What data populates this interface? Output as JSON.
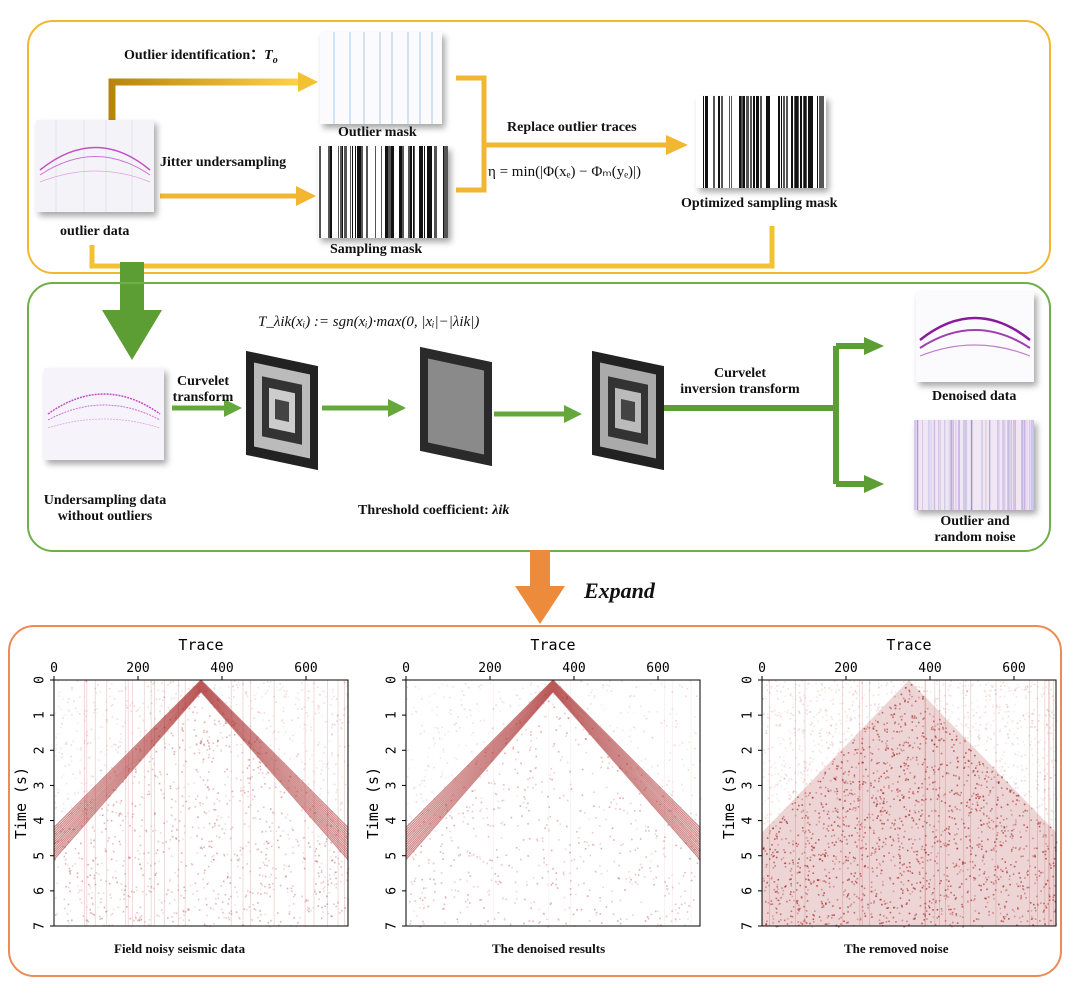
{
  "top_panel": {
    "outlier_identification": "Outlier identification：",
    "outlier_symbol": "T",
    "outlier_symbol_sub": "o",
    "outlier_mask": "Outlier mask",
    "jitter_undersampling": "Jitter undersampling",
    "sampling_mask": "Sampling mask",
    "outlier_data": "outlier data",
    "replace_outlier_traces": "Replace outlier traces",
    "eta_formula": "η = min(|Φ(xₑ) − Φₘ(yₑ)|)",
    "optimized_sampling_mask": "Optimized sampling mask"
  },
  "mid_panel": {
    "threshold_formula": "T_λik(xᵢ) := sgn(xᵢ)·max(0, |xᵢ|−|λik|)",
    "undersampling_label_1": "Undersampling data",
    "undersampling_label_2": "without outliers",
    "curvelet_transform_1": "Curvelet",
    "curvelet_transform_2": "transform",
    "threshold_coefficient": "Threshold coefficient:",
    "threshold_symbol": "λik",
    "curvelet_inversion_1": "Curvelet",
    "curvelet_inversion_2": "inversion transform",
    "denoised_data": "Denoised data",
    "outlier_noise_1": "Outlier and",
    "outlier_noise_2": "random noise"
  },
  "expand_label": "Expand",
  "plots": [
    {
      "title": "Field noisy seismic data",
      "xlabel": "Trace",
      "ylabel": "Time (s)",
      "xticks": [
        "0",
        "200",
        "400",
        "600"
      ],
      "yticks": [
        "0",
        "1",
        "2",
        "3",
        "4",
        "5",
        "6",
        "7"
      ]
    },
    {
      "title": "The denoised results",
      "xlabel": "Trace",
      "ylabel": "Time (s)",
      "xticks": [
        "0",
        "200",
        "400",
        "600"
      ],
      "yticks": [
        "0",
        "1",
        "2",
        "3",
        "4",
        "5",
        "6",
        "7"
      ]
    },
    {
      "title": "The removed noise",
      "xlabel": "Trace",
      "ylabel": "Time (s)",
      "xticks": [
        "0",
        "200",
        "400",
        "600"
      ],
      "yticks": [
        "0",
        "1",
        "2",
        "3",
        "4",
        "5",
        "6",
        "7"
      ]
    }
  ],
  "colors": {
    "top_border": "#f2b632",
    "mid_border": "#6fae4a",
    "bottom_border": "#ec8b54",
    "seismic_red": "#a01818"
  }
}
